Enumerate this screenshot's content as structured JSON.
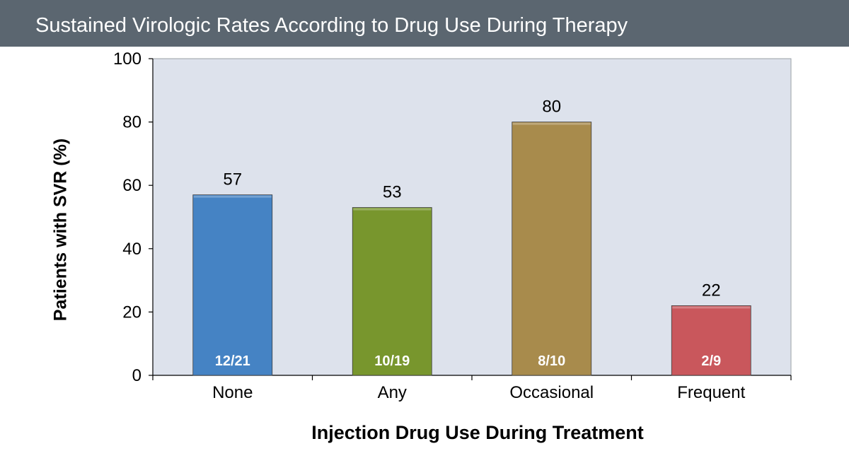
{
  "header": {
    "title": "Sustained Virologic Rates According to Drug Use During Therapy"
  },
  "chart_data": {
    "type": "bar",
    "title": "Sustained Virologic Rates According to Drug Use During Therapy",
    "xlabel": "Injection Drug Use During Treatment",
    "ylabel": "Patients with SVR (%)",
    "ylim": [
      0,
      100
    ],
    "yticks": [
      0,
      20,
      40,
      60,
      80,
      100
    ],
    "grid": false,
    "categories": [
      "None",
      "Any",
      "Occasional",
      "Frequent"
    ],
    "values": [
      57,
      53,
      80,
      22
    ],
    "value_labels": [
      "57",
      "53",
      "80",
      "22"
    ],
    "fraction_labels": [
      "12/21",
      "10/19",
      "8/10",
      "2/9"
    ],
    "colors": [
      "#4583c4",
      "#78962d",
      "#a88b4c",
      "#c9575c"
    ],
    "plot_background": "#dde2ec"
  }
}
